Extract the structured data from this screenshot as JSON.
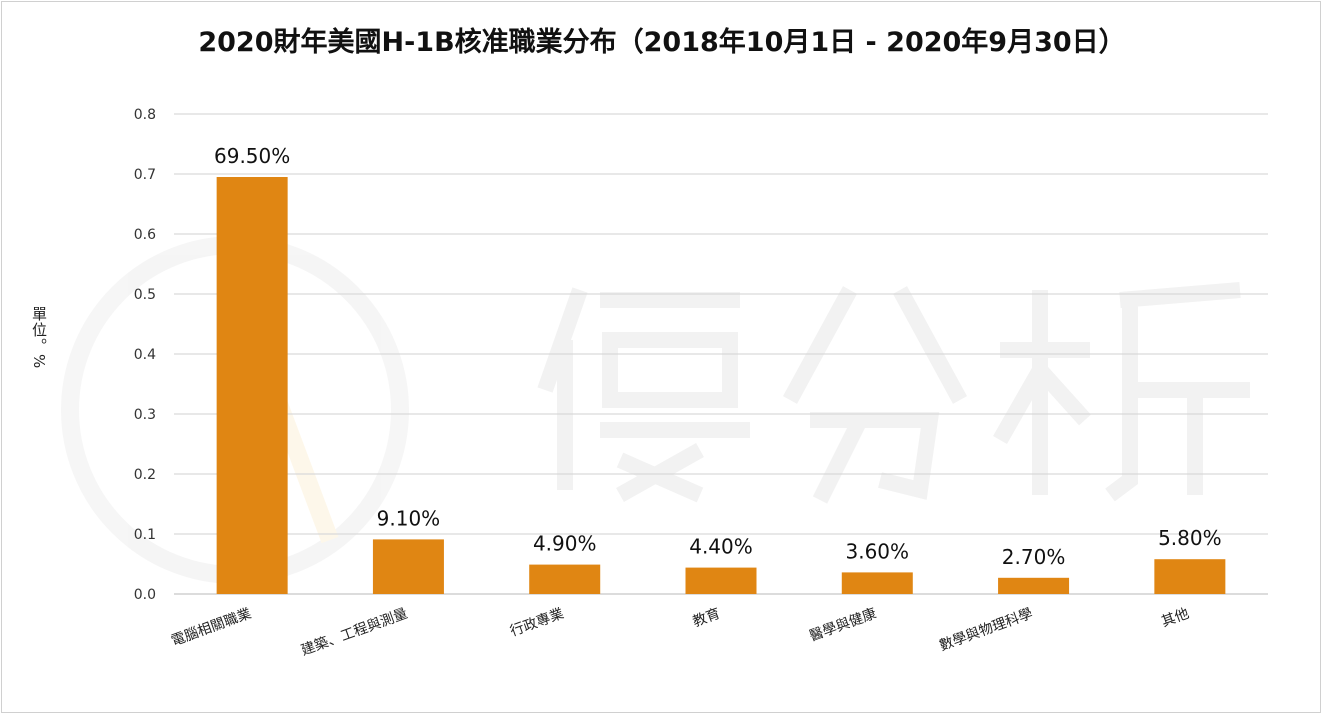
{
  "watermark": "優分析",
  "chart_data": {
    "type": "bar",
    "title": "2020財年美國H-1B核准職業分布（2018年10月1日 - 2020年9月30日）",
    "ylabel": "單位。%",
    "xlabel": "",
    "ylim": [
      0,
      0.8
    ],
    "yticks": [
      "0.0",
      "0.1",
      "0.2",
      "0.3",
      "0.4",
      "0.5",
      "0.6",
      "0.7",
      "0.8"
    ],
    "grid": true,
    "categories": [
      "電腦相關職業",
      "建築、工程與測量",
      "行政專業",
      "教育",
      "醫學與健康",
      "數學與物理科學",
      "其他"
    ],
    "values": [
      0.695,
      0.091,
      0.049,
      0.044,
      0.036,
      0.027,
      0.058
    ],
    "data_labels": [
      "69.50%",
      "9.10%",
      "4.90%",
      "4.40%",
      "3.60%",
      "2.70%",
      "5.80%"
    ],
    "bar_color": "#E08613"
  }
}
